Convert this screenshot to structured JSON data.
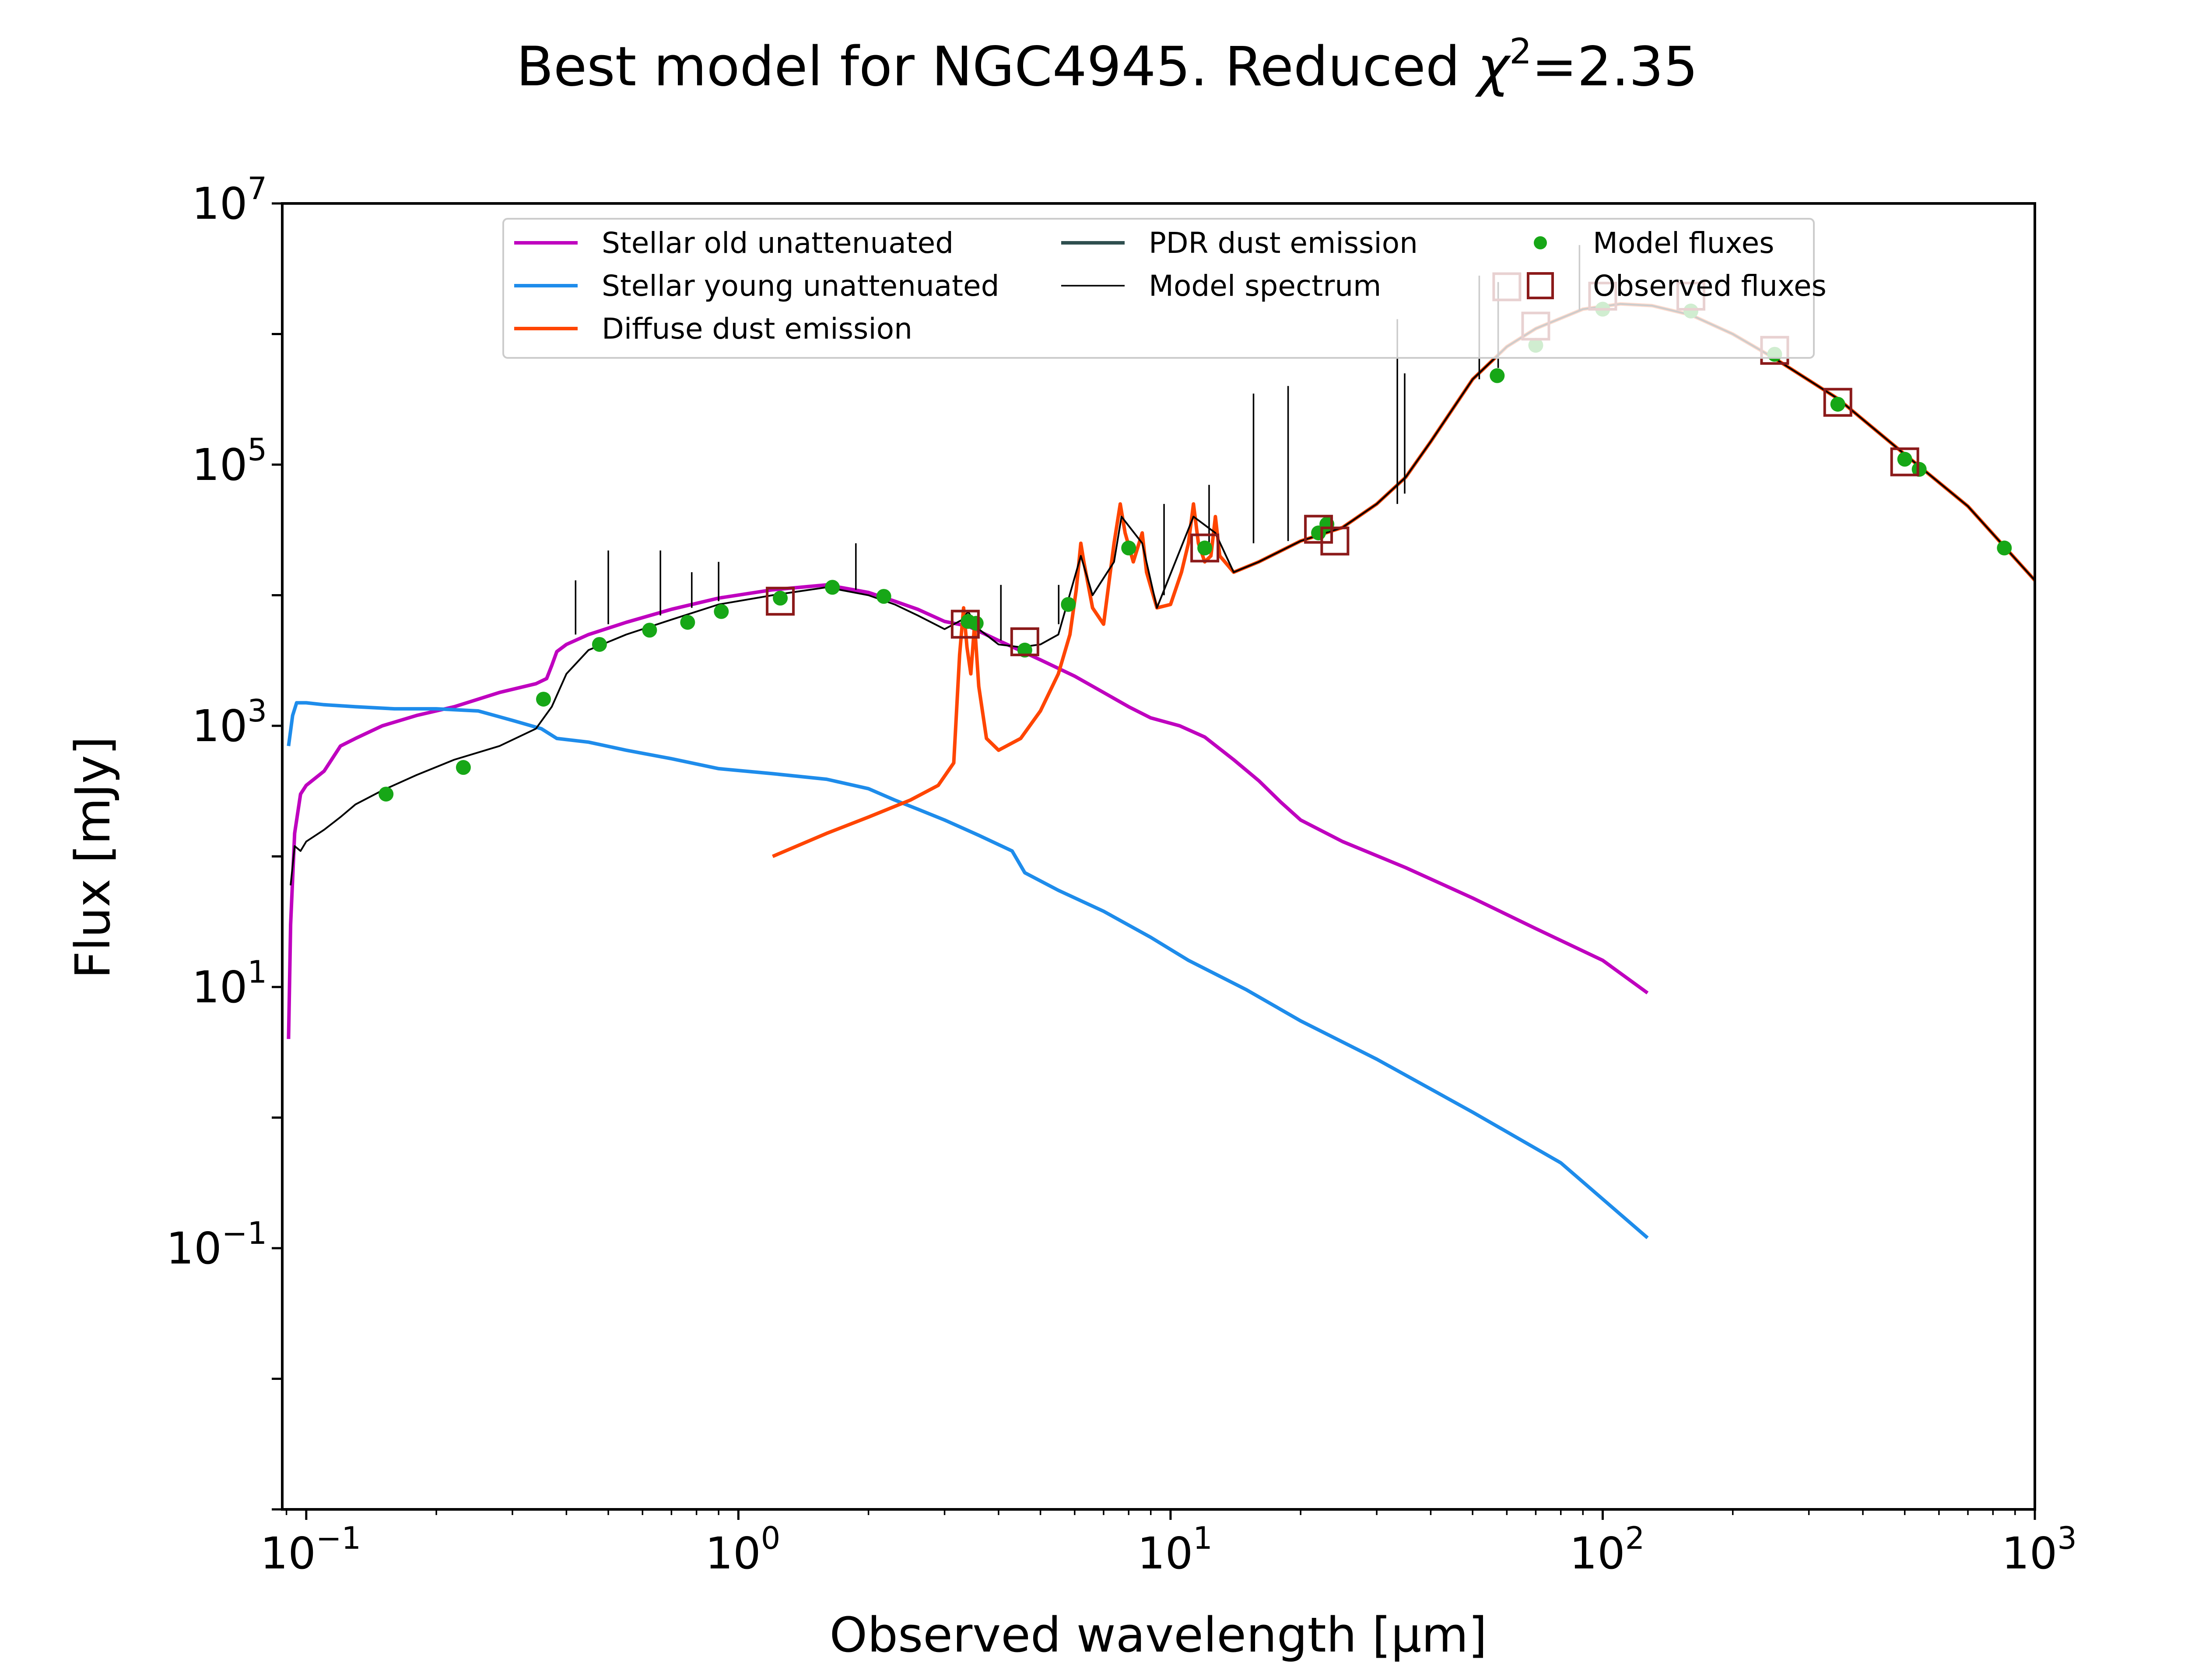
{
  "chart_data": {
    "type": "line",
    "title_main": "Best model for NGC4945. Reduced ",
    "title_chi": "χ",
    "title_sup": "2",
    "title_tail": "=2.35",
    "xlabel": "Observed wavelength [μm]",
    "ylabel": "Flux [mJy]",
    "xscale": "log",
    "yscale": "log",
    "xlim": [
      0.088,
      1000
    ],
    "ylim": [
      0.001,
      10000000
    ],
    "grid": false,
    "legend_placement": "upper center",
    "x_ticks": [
      {
        "base": "10",
        "exp": "−1",
        "value": 0.1
      },
      {
        "base": "10",
        "exp": "0",
        "value": 1
      },
      {
        "base": "10",
        "exp": "1",
        "value": 10
      },
      {
        "base": "10",
        "exp": "2",
        "value": 100
      },
      {
        "base": "10",
        "exp": "3",
        "value": 1000
      }
    ],
    "y_ticks": [
      {
        "base": "10",
        "exp": "−1",
        "value": 0.1
      },
      {
        "base": "10",
        "exp": "1",
        "value": 10
      },
      {
        "base": "10",
        "exp": "3",
        "value": 1000
      },
      {
        "base": "10",
        "exp": "5",
        "value": 100000
      },
      {
        "base": "10",
        "exp": "7",
        "value": 10000000
      }
    ],
    "series": [
      {
        "name": "Stellar old unattenuated",
        "kind": "line",
        "color": "#bf00bf",
        "points": [
          [
            0.091,
            4
          ],
          [
            0.092,
            30
          ],
          [
            0.094,
            150
          ],
          [
            0.097,
            300
          ],
          [
            0.1,
            350
          ],
          [
            0.11,
            450
          ],
          [
            0.12,
            700
          ],
          [
            0.13,
            800
          ],
          [
            0.15,
            1000
          ],
          [
            0.18,
            1200
          ],
          [
            0.22,
            1400
          ],
          [
            0.28,
            1800
          ],
          [
            0.34,
            2100
          ],
          [
            0.36,
            2300
          ],
          [
            0.37,
            2900
          ],
          [
            0.38,
            3700
          ],
          [
            0.4,
            4200
          ],
          [
            0.45,
            5000
          ],
          [
            0.55,
            6200
          ],
          [
            0.7,
            7800
          ],
          [
            0.9,
            9500
          ],
          [
            1.2,
            11000
          ],
          [
            1.6,
            12000
          ],
          [
            2.0,
            10500
          ],
          [
            2.3,
            9000
          ],
          [
            2.6,
            7800
          ],
          [
            3.0,
            6300
          ],
          [
            3.4,
            5800
          ],
          [
            4.0,
            4500
          ],
          [
            5.0,
            3200
          ],
          [
            6.0,
            2400
          ],
          [
            7.0,
            1800
          ],
          [
            8.0,
            1400
          ],
          [
            9.0,
            1150
          ],
          [
            10.5,
            1000
          ],
          [
            12,
            820
          ],
          [
            14,
            550
          ],
          [
            16,
            380
          ],
          [
            18,
            260
          ],
          [
            20,
            190
          ],
          [
            25,
            130
          ],
          [
            35,
            82
          ],
          [
            50,
            48
          ],
          [
            70,
            28
          ],
          [
            100,
            16
          ],
          [
            127,
            9
          ]
        ]
      },
      {
        "name": "Stellar young unattenuated",
        "kind": "line",
        "color": "#1e8ceb",
        "points": [
          [
            0.091,
            700
          ],
          [
            0.093,
            1200
          ],
          [
            0.095,
            1500
          ],
          [
            0.1,
            1500
          ],
          [
            0.11,
            1450
          ],
          [
            0.13,
            1400
          ],
          [
            0.16,
            1350
          ],
          [
            0.2,
            1350
          ],
          [
            0.25,
            1300
          ],
          [
            0.3,
            1100
          ],
          [
            0.35,
            950
          ],
          [
            0.38,
            800
          ],
          [
            0.45,
            750
          ],
          [
            0.55,
            650
          ],
          [
            0.7,
            560
          ],
          [
            0.9,
            470
          ],
          [
            1.2,
            430
          ],
          [
            1.6,
            390
          ],
          [
            2.0,
            330
          ],
          [
            2.3,
            270
          ],
          [
            2.6,
            230
          ],
          [
            3.0,
            190
          ],
          [
            3.6,
            145
          ],
          [
            4.3,
            110
          ],
          [
            4.6,
            75
          ],
          [
            5.5,
            55
          ],
          [
            7.0,
            38
          ],
          [
            9.0,
            24
          ],
          [
            11,
            16
          ],
          [
            15,
            9.5
          ],
          [
            20,
            5.5
          ],
          [
            30,
            2.8
          ],
          [
            50,
            1.1
          ],
          [
            80,
            0.45
          ],
          [
            127,
            0.12
          ]
        ]
      },
      {
        "name": "Diffuse dust emission",
        "kind": "line",
        "color": "#ff4500",
        "points": [
          [
            1.2,
            100
          ],
          [
            1.6,
            150
          ],
          [
            2.0,
            200
          ],
          [
            2.5,
            270
          ],
          [
            2.9,
            350
          ],
          [
            3.15,
            520
          ],
          [
            3.25,
            3500
          ],
          [
            3.32,
            8000
          ],
          [
            3.38,
            4000
          ],
          [
            3.45,
            2500
          ],
          [
            3.52,
            6000
          ],
          [
            3.6,
            2000
          ],
          [
            3.75,
            800
          ],
          [
            4.0,
            650
          ],
          [
            4.5,
            800
          ],
          [
            5.0,
            1300
          ],
          [
            5.5,
            2500
          ],
          [
            5.85,
            5000
          ],
          [
            6.05,
            11000
          ],
          [
            6.2,
            25000
          ],
          [
            6.3,
            18000
          ],
          [
            6.6,
            8000
          ],
          [
            7.0,
            6000
          ],
          [
            7.4,
            25000
          ],
          [
            7.65,
            50000
          ],
          [
            7.85,
            30000
          ],
          [
            8.2,
            18000
          ],
          [
            8.6,
            30000
          ],
          [
            8.8,
            15000
          ],
          [
            9.3,
            8000
          ],
          [
            10.0,
            8500
          ],
          [
            10.6,
            15000
          ],
          [
            11.0,
            25000
          ],
          [
            11.3,
            50000
          ],
          [
            11.6,
            25000
          ],
          [
            12.0,
            18000
          ],
          [
            12.4,
            20000
          ],
          [
            12.7,
            40000
          ],
          [
            13.0,
            20000
          ],
          [
            14,
            15000
          ],
          [
            16,
            18000
          ],
          [
            20,
            26000
          ],
          [
            25,
            33000
          ],
          [
            30,
            50000
          ],
          [
            35,
            80000
          ],
          [
            40,
            150000
          ],
          [
            50,
            450000
          ],
          [
            60,
            800000
          ],
          [
            70,
            1100000
          ],
          [
            90,
            1550000
          ],
          [
            110,
            1700000
          ],
          [
            130,
            1650000
          ],
          [
            160,
            1400000
          ],
          [
            200,
            1000000
          ],
          [
            250,
            650000
          ],
          [
            350,
            320000
          ],
          [
            500,
            120000
          ],
          [
            700,
            48000
          ],
          [
            1000,
            13000
          ]
        ]
      },
      {
        "name": "PDR dust emission",
        "kind": "line",
        "color": "#2f4f4f",
        "points": []
      },
      {
        "name": "Model spectrum",
        "kind": "line",
        "color": "#000000",
        "points": [
          [
            0.092,
            60
          ],
          [
            0.094,
            120
          ],
          [
            0.097,
            110
          ],
          [
            0.1,
            130
          ],
          [
            0.11,
            160
          ],
          [
            0.12,
            200
          ],
          [
            0.13,
            250
          ],
          [
            0.15,
            320
          ],
          [
            0.18,
            420
          ],
          [
            0.22,
            550
          ],
          [
            0.28,
            700
          ],
          [
            0.34,
            950
          ],
          [
            0.37,
            1400
          ],
          [
            0.4,
            2500
          ],
          [
            0.45,
            3800
          ],
          [
            0.55,
            5000
          ],
          [
            0.7,
            6500
          ],
          [
            0.9,
            8500
          ],
          [
            1.2,
            10000
          ],
          [
            1.6,
            11500
          ],
          [
            2.0,
            10000
          ],
          [
            2.3,
            8500
          ],
          [
            2.6,
            7000
          ],
          [
            3.0,
            5500
          ],
          [
            3.3,
            6500
          ],
          [
            3.4,
            7500
          ],
          [
            3.6,
            5500
          ],
          [
            4.0,
            4200
          ],
          [
            4.5,
            4000
          ],
          [
            5.0,
            4200
          ],
          [
            5.5,
            5000
          ],
          [
            6.2,
            20000
          ],
          [
            6.6,
            10000
          ],
          [
            7.4,
            18000
          ],
          [
            7.7,
            40000
          ],
          [
            8.6,
            25000
          ],
          [
            9.3,
            8000
          ],
          [
            11.3,
            40000
          ],
          [
            12.7,
            30000
          ],
          [
            14,
            15000
          ],
          [
            16,
            18000
          ],
          [
            20,
            26000
          ],
          [
            25,
            33000
          ],
          [
            30,
            50000
          ],
          [
            35,
            80000
          ],
          [
            40,
            150000
          ],
          [
            50,
            450000
          ],
          [
            60,
            800000
          ],
          [
            70,
            1100000
          ],
          [
            90,
            1550000
          ],
          [
            110,
            1700000
          ],
          [
            130,
            1650000
          ],
          [
            160,
            1400000
          ],
          [
            200,
            1000000
          ],
          [
            250,
            650000
          ],
          [
            350,
            320000
          ],
          [
            500,
            120000
          ],
          [
            700,
            48000
          ],
          [
            1000,
            13000
          ]
        ]
      },
      {
        "name": "Model spectrum lines",
        "kind": "vlines",
        "color": "#000000",
        "segments": [
          [
            0.42,
            5000,
            13000
          ],
          [
            0.5,
            6000,
            22000
          ],
          [
            0.66,
            7000,
            22000
          ],
          [
            0.78,
            8000,
            15000
          ],
          [
            0.9,
            9000,
            18000
          ],
          [
            1.87,
            11000,
            25000
          ],
          [
            4.05,
            4500,
            12000
          ],
          [
            5.51,
            6000,
            12000
          ],
          [
            9.66,
            10000,
            50000
          ],
          [
            12.28,
            22000,
            70000
          ],
          [
            15.56,
            25000,
            350000
          ],
          [
            18.71,
            26000,
            400000
          ],
          [
            33.48,
            50000,
            1300000
          ],
          [
            34.82,
            60000,
            500000
          ],
          [
            51.81,
            450000,
            2800000
          ],
          [
            57.3,
            550000,
            2500000
          ],
          [
            88.36,
            1500000,
            4800000
          ]
        ]
      },
      {
        "name": "Model fluxes",
        "kind": "points",
        "color": "#17a717",
        "points": [
          [
            0.153,
            300
          ],
          [
            0.231,
            480
          ],
          [
            0.354,
            1600
          ],
          [
            0.477,
            4200
          ],
          [
            0.623,
            5400
          ],
          [
            0.763,
            6200
          ],
          [
            0.913,
            7500
          ],
          [
            1.25,
            9500
          ],
          [
            1.65,
            11500
          ],
          [
            2.17,
            9800
          ],
          [
            3.4,
            6300
          ],
          [
            3.55,
            6100
          ],
          [
            4.6,
            3800
          ],
          [
            5.8,
            8500
          ],
          [
            8.0,
            23000
          ],
          [
            12.0,
            23000
          ],
          [
            22.0,
            30000
          ],
          [
            23.0,
            35000
          ],
          [
            57.0,
            480000
          ],
          [
            70.0,
            820000
          ],
          [
            100.0,
            1550000
          ],
          [
            160.0,
            1500000
          ],
          [
            250.0,
            700000
          ],
          [
            350.0,
            290000
          ],
          [
            500.0,
            110000
          ],
          [
            540.0,
            92000
          ],
          [
            850.0,
            23000
          ]
        ]
      },
      {
        "name": "Observed fluxes",
        "kind": "squares",
        "color": "#8b1a1a",
        "points": [
          [
            1.25,
            9000
          ],
          [
            3.35,
            6000
          ],
          [
            4.6,
            4400
          ],
          [
            12.0,
            23000
          ],
          [
            22.0,
            32000
          ],
          [
            24.0,
            26000
          ],
          [
            60.0,
            2300000
          ],
          [
            70.0,
            1150000
          ],
          [
            100.0,
            1950000
          ],
          [
            160.0,
            1950000
          ],
          [
            250.0,
            750000
          ],
          [
            350.0,
            300000
          ],
          [
            500.0,
            105000
          ]
        ]
      }
    ],
    "legend_layout": [
      {
        "series": "Stellar old unattenuated",
        "col": 0,
        "row": 0
      },
      {
        "series": "Stellar young unattenuated",
        "col": 0,
        "row": 1
      },
      {
        "series": "Diffuse dust emission",
        "col": 0,
        "row": 2
      },
      {
        "series": "PDR dust emission",
        "col": 1,
        "row": 0
      },
      {
        "series": "Model spectrum",
        "col": 1,
        "row": 1
      },
      {
        "series": "Model fluxes",
        "col": 2,
        "row": 0
      },
      {
        "series": "Observed fluxes",
        "col": 2,
        "row": 1
      }
    ]
  }
}
